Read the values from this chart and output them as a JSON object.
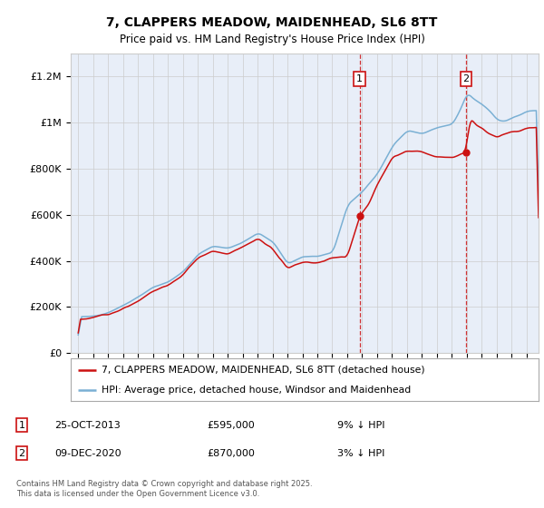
{
  "title": "7, CLAPPERS MEADOW, MAIDENHEAD, SL6 8TT",
  "subtitle": "Price paid vs. HM Land Registry's House Price Index (HPI)",
  "red_label": "7, CLAPPERS MEADOW, MAIDENHEAD, SL6 8TT (detached house)",
  "blue_label": "HPI: Average price, detached house, Windsor and Maidenhead",
  "annotation1_date": "25-OCT-2013",
  "annotation1_price": "£595,000",
  "annotation1_hpi": "9% ↓ HPI",
  "annotation2_date": "09-DEC-2020",
  "annotation2_price": "£870,000",
  "annotation2_hpi": "3% ↓ HPI",
  "vline1_x": 2013.82,
  "vline2_x": 2020.94,
  "sale1_y": 595000,
  "sale2_y": 870000,
  "footnote": "Contains HM Land Registry data © Crown copyright and database right 2025.\nThis data is licensed under the Open Government Licence v3.0.",
  "background_color": "#e8eef8",
  "ylim_min": 0,
  "ylim_max": 1300000,
  "xlim_min": 1994.5,
  "xlim_max": 2025.8,
  "yticks": [
    0,
    200000,
    400000,
    600000,
    800000,
    1000000,
    1200000
  ],
  "ytick_labels": [
    "£0",
    "£200K",
    "£400K",
    "£600K",
    "£800K",
    "£1M",
    "£1.2M"
  ],
  "xticks": [
    1995,
    1996,
    1997,
    1998,
    1999,
    2000,
    2001,
    2002,
    2003,
    2004,
    2005,
    2006,
    2007,
    2008,
    2009,
    2010,
    2011,
    2012,
    2013,
    2014,
    2015,
    2016,
    2017,
    2018,
    2019,
    2020,
    2021,
    2022,
    2023,
    2024,
    2025
  ],
  "red_color": "#cc1111",
  "blue_color": "#7ab0d4",
  "vline_color": "#cc1111",
  "grid_color": "#cccccc",
  "legend_border_color": "#aaaaaa",
  "ann_box_color": "#cc1111"
}
